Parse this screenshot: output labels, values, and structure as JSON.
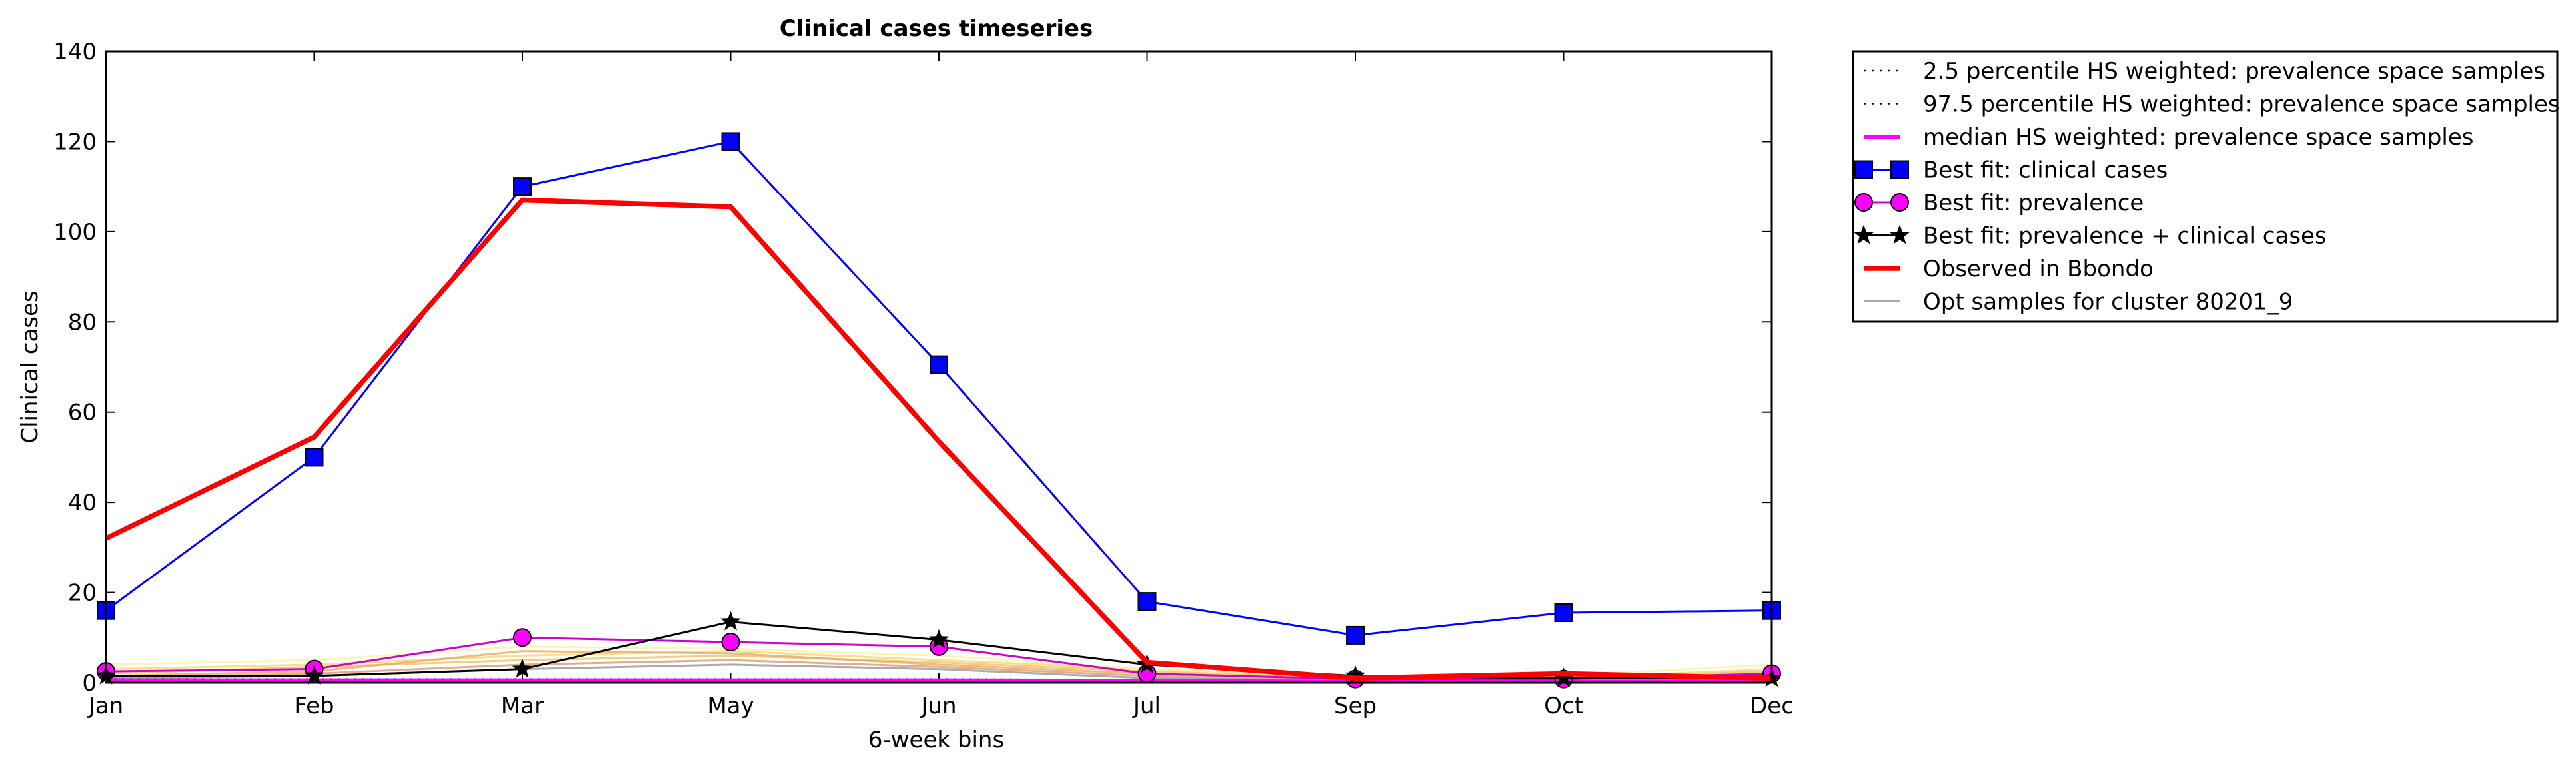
{
  "chart_data": {
    "type": "line",
    "title": "Clinical cases timeseries",
    "xlabel": "6-week bins",
    "ylabel": "Clinical cases",
    "categories": [
      "Jan",
      "Feb",
      "Mar",
      "May",
      "Jun",
      "Jul",
      "Sep",
      "Oct",
      "Dec"
    ],
    "ylim": [
      0,
      140
    ],
    "yticks": [
      0,
      20,
      40,
      60,
      80,
      100,
      120,
      140
    ],
    "grid": false,
    "legend_position": "outside-right",
    "series": [
      {
        "name": "2.5 percentile HS weighted: prevalence space samples",
        "color": "#000000",
        "style": "dotted",
        "marker": "none",
        "values": [
          0.2,
          0.2,
          0.2,
          0.2,
          0.2,
          0.1,
          0.1,
          0.1,
          0.1
        ]
      },
      {
        "name": "97.5 percentile HS weighted: prevalence space samples",
        "color": "#000000",
        "style": "dotted",
        "marker": "none",
        "values": [
          0.8,
          0.8,
          0.8,
          0.8,
          0.8,
          0.6,
          0.3,
          0.3,
          0.5
        ]
      },
      {
        "name": "median HS weighted: prevalence space samples",
        "color": "#ff00ff",
        "style": "solid-thick",
        "marker": "none",
        "values": [
          0.5,
          0.5,
          0.5,
          0.5,
          0.5,
          0.4,
          0.2,
          0.2,
          0.3
        ]
      },
      {
        "name": "Best fit: clinical cases",
        "color": "#0000ff",
        "style": "solid",
        "marker": "square",
        "values": [
          16,
          50,
          110,
          120,
          70.5,
          18,
          10.5,
          15.5,
          16
        ]
      },
      {
        "name": "Best fit: prevalence",
        "color": "#cc00cc",
        "style": "solid",
        "marker": "circle",
        "values": [
          2.5,
          3,
          10,
          9,
          8,
          2,
          0.8,
          0.8,
          2
        ]
      },
      {
        "name": "Best fit: prevalence + clinical cases",
        "color": "#000000",
        "style": "solid",
        "marker": "star",
        "values": [
          1.5,
          1.5,
          3,
          13.5,
          9.5,
          4,
          1.5,
          1,
          1
        ]
      },
      {
        "name": "Observed in Bbondo",
        "color": "#ff0000",
        "style": "solid-thick",
        "marker": "none",
        "values": [
          32,
          54.5,
          107,
          105.5,
          53.5,
          4.5,
          1,
          2,
          1
        ]
      },
      {
        "name": "Opt samples for cluster 80201_9",
        "color": "#aaaaaa",
        "style": "solid",
        "marker": "none",
        "values": [
          1,
          1.5,
          3,
          4,
          3,
          1,
          0.5,
          0.5,
          1
        ]
      }
    ],
    "sample_lines": [
      {
        "color": "#f5d76e",
        "values": [
          3,
          4,
          6,
          7,
          5,
          3,
          1,
          1,
          3
        ]
      },
      {
        "color": "#f0c060",
        "values": [
          2,
          3.5,
          5,
          6,
          4.5,
          2.5,
          1,
          1,
          2.5
        ]
      },
      {
        "color": "#e8a860",
        "values": [
          1.5,
          2.5,
          7,
          6.5,
          4,
          2,
          0.8,
          0.8,
          2
        ]
      },
      {
        "color": "#fff2a0",
        "values": [
          4,
          5,
          8,
          7.5,
          6,
          3,
          1.2,
          1.5,
          4
        ]
      },
      {
        "color": "#d89870",
        "values": [
          1,
          2,
          4,
          5,
          3.5,
          1.5,
          0.5,
          0.6,
          1.5
        ]
      }
    ]
  }
}
